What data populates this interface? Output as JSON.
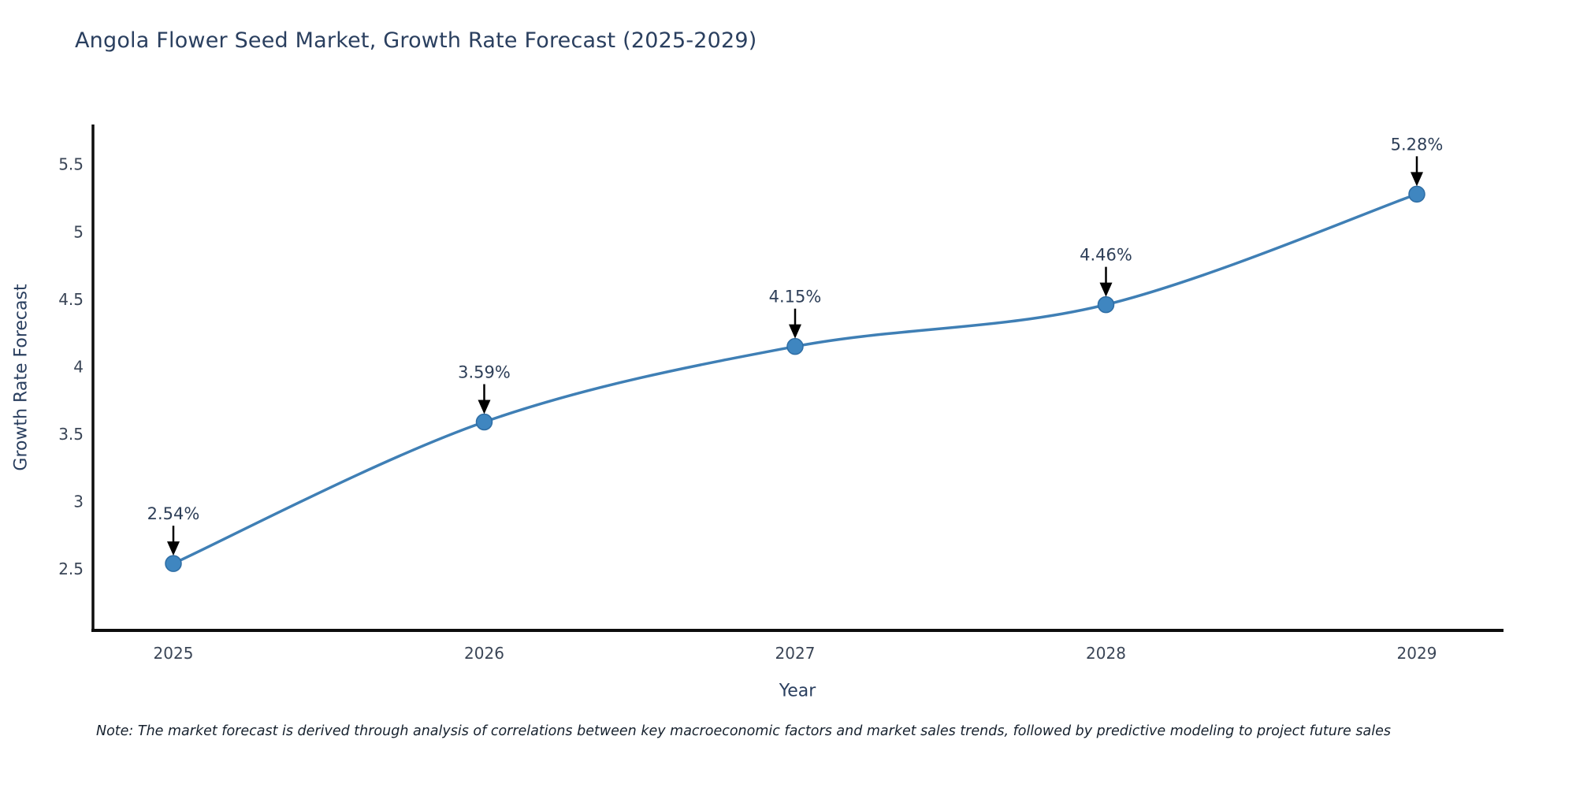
{
  "title": "Angola Flower Seed Market, Growth Rate Forecast (2025-2029)",
  "note": "Note: The market forecast is derived through analysis of correlations between key macroeconomic factors and market sales trends, followed by predictive modeling to project future sales",
  "chart_data": {
    "type": "line",
    "x": [
      "2025",
      "2026",
      "2027",
      "2028",
      "2029"
    ],
    "values": [
      2.54,
      3.59,
      4.15,
      4.46,
      5.28
    ],
    "point_labels": [
      "2.54%",
      "3.59%",
      "4.15%",
      "4.46%",
      "5.28%"
    ],
    "title": "Angola Flower Seed Market, Growth Rate Forecast (2025-2029)",
    "xlabel": "Year",
    "ylabel": "Growth Rate Forecast",
    "ytick_labels": [
      "2.5",
      "3",
      "3.5",
      "4",
      "4.5",
      "5",
      "5.5"
    ],
    "ytick_values": [
      2.5,
      3,
      3.5,
      4,
      4.5,
      5,
      5.5
    ],
    "ylim": [
      2.04,
      5.8
    ],
    "grid": false,
    "legend": "none",
    "annotations": "value labels with down arrows above each point",
    "colors": {
      "line": "#3f7fb5",
      "marker": "#3f86c0",
      "marker_edge": "#2e6da4",
      "axis": "#0d0d0d",
      "tick_text": "#3a4556",
      "title_text": "#2a3f5f",
      "annotation_text": "#2e3f58",
      "annotation_arrow": "#000000"
    }
  }
}
